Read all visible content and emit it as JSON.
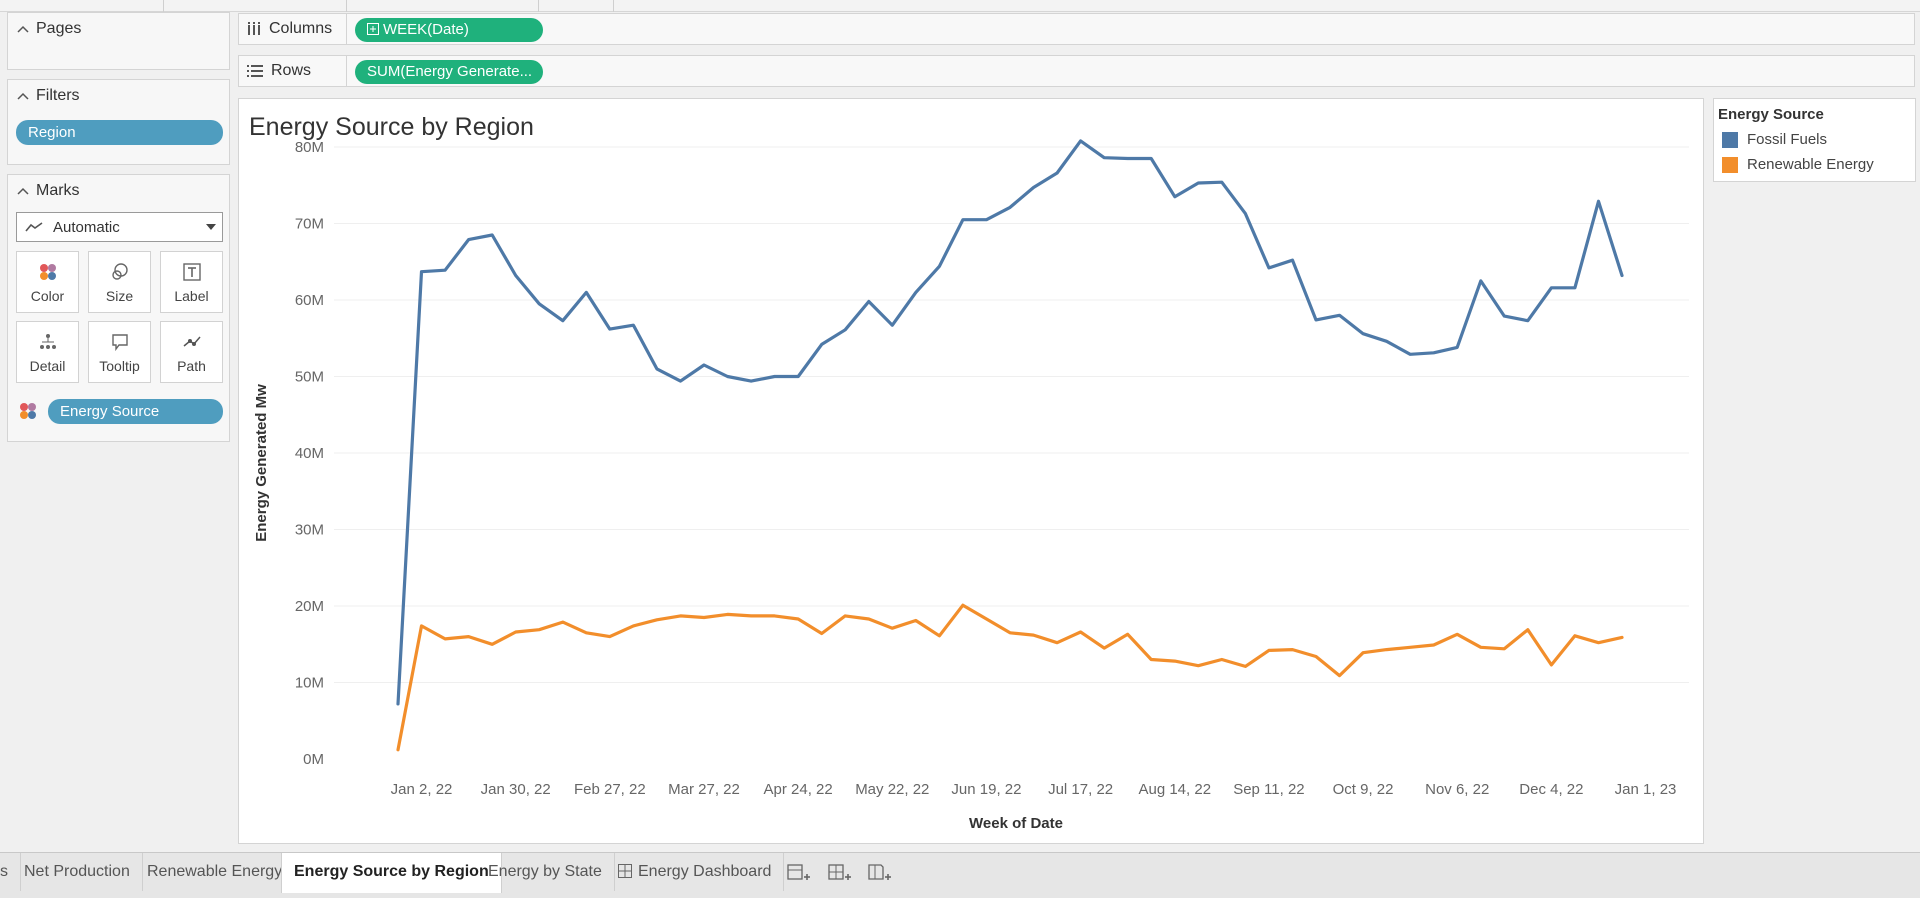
{
  "left_panel": {
    "pages": {
      "title": "Pages"
    },
    "filters": {
      "title": "Filters",
      "pills": [
        "Region"
      ]
    },
    "marks": {
      "title": "Marks",
      "mark_type": "Automatic",
      "buttons": [
        "Color",
        "Size",
        "Label",
        "Detail",
        "Tooltip",
        "Path"
      ],
      "color_pill": "Energy Source"
    }
  },
  "shelves": {
    "columns": {
      "label": "Columns",
      "pill": "WEEK(Date)"
    },
    "rows": {
      "label": "Rows",
      "pill": "SUM(Energy Generate..."
    }
  },
  "legend": {
    "title": "Energy Source",
    "items": [
      {
        "label": "Fossil Fuels",
        "color": "#4e79a7"
      },
      {
        "label": "Renewable Energy",
        "color": "#f28e2b"
      }
    ]
  },
  "tabs": [
    "s",
    "Net Production",
    "Renewable Energy",
    "Energy Source by Region",
    "Energy by State",
    "Energy Dashboard"
  ],
  "active_tab": "Energy Source by Region",
  "chart_data": {
    "type": "line",
    "title": "Energy Source by Region",
    "xlabel": "Week of Date",
    "ylabel": "Energy Generated Mw",
    "ylim": [
      0,
      80
    ],
    "y_unit": "M",
    "yticks": [
      "0M",
      "10M",
      "20M",
      "30M",
      "40M",
      "50M",
      "60M",
      "70M",
      "80M"
    ],
    "xticks": [
      "Jan 2, 22",
      "Jan 30, 22",
      "Feb 27, 22",
      "Mar 27, 22",
      "Apr 24, 22",
      "May 22, 22",
      "Jun 19, 22",
      "Jul 17, 22",
      "Aug 14, 22",
      "Sep 11, 22",
      "Oct 9, 22",
      "Nov 6, 22",
      "Dec 4, 22",
      "Jan 1, 23"
    ],
    "x": [
      "Dec 26, 21",
      "Jan 2, 22",
      "Jan 9, 22",
      "Jan 16, 22",
      "Jan 23, 22",
      "Jan 30, 22",
      "Feb 6, 22",
      "Feb 13, 22",
      "Feb 20, 22",
      "Feb 27, 22",
      "Mar 6, 22",
      "Mar 13, 22",
      "Mar 20, 22",
      "Mar 27, 22",
      "Apr 3, 22",
      "Apr 10, 22",
      "Apr 17, 22",
      "Apr 24, 22",
      "May 1, 22",
      "May 8, 22",
      "May 15, 22",
      "May 22, 22",
      "May 29, 22",
      "Jun 5, 22",
      "Jun 12, 22",
      "Jun 19, 22",
      "Jun 26, 22",
      "Jul 3, 22",
      "Jul 10, 22",
      "Jul 17, 22",
      "Jul 24, 22",
      "Jul 31, 22",
      "Aug 7, 22",
      "Aug 14, 22",
      "Aug 21, 22",
      "Aug 28, 22",
      "Sep 4, 22",
      "Sep 11, 22",
      "Sep 18, 22",
      "Sep 25, 22",
      "Oct 2, 22",
      "Oct 9, 22",
      "Oct 16, 22",
      "Oct 23, 22",
      "Oct 30, 22",
      "Nov 6, 22",
      "Nov 13, 22",
      "Nov 20, 22",
      "Nov 27, 22",
      "Dec 4, 22",
      "Dec 11, 22",
      "Dec 18, 22",
      "Dec 25, 22"
    ],
    "series": [
      {
        "name": "Fossil Fuels",
        "color": "#4e79a7",
        "values": [
          7.2,
          63.7,
          63.9,
          67.9,
          68.5,
          63.2,
          59.5,
          57.3,
          61.0,
          56.2,
          56.7,
          51.0,
          49.4,
          51.5,
          50.0,
          49.4,
          50.0,
          50.0,
          54.2,
          56.1,
          59.8,
          56.7,
          61.0,
          64.4,
          70.5,
          70.5,
          72.1,
          74.7,
          76.6,
          80.8,
          78.6,
          78.5,
          78.5,
          73.5,
          75.3,
          75.4,
          71.3,
          64.2,
          65.2,
          57.4,
          58.0,
          55.6,
          54.6,
          52.9,
          53.1,
          53.8,
          62.5,
          57.9,
          57.3,
          61.6,
          61.6,
          72.9,
          63.2
        ]
      },
      {
        "name": "Renewable Energy",
        "color": "#f28e2b",
        "values": [
          1.2,
          17.4,
          15.7,
          16.0,
          15.0,
          16.6,
          16.9,
          17.9,
          16.5,
          16.0,
          17.4,
          18.2,
          18.7,
          18.5,
          18.9,
          18.7,
          18.7,
          18.3,
          16.4,
          18.7,
          18.3,
          17.1,
          18.1,
          16.1,
          20.1,
          18.3,
          16.5,
          16.2,
          15.2,
          16.6,
          14.5,
          16.3,
          13.0,
          12.8,
          12.2,
          13.0,
          12.1,
          14.2,
          14.3,
          13.4,
          10.9,
          13.9,
          14.3,
          14.6,
          14.9,
          16.3,
          14.6,
          14.4,
          16.9,
          12.3,
          16.1,
          15.2,
          15.9
        ]
      }
    ]
  }
}
